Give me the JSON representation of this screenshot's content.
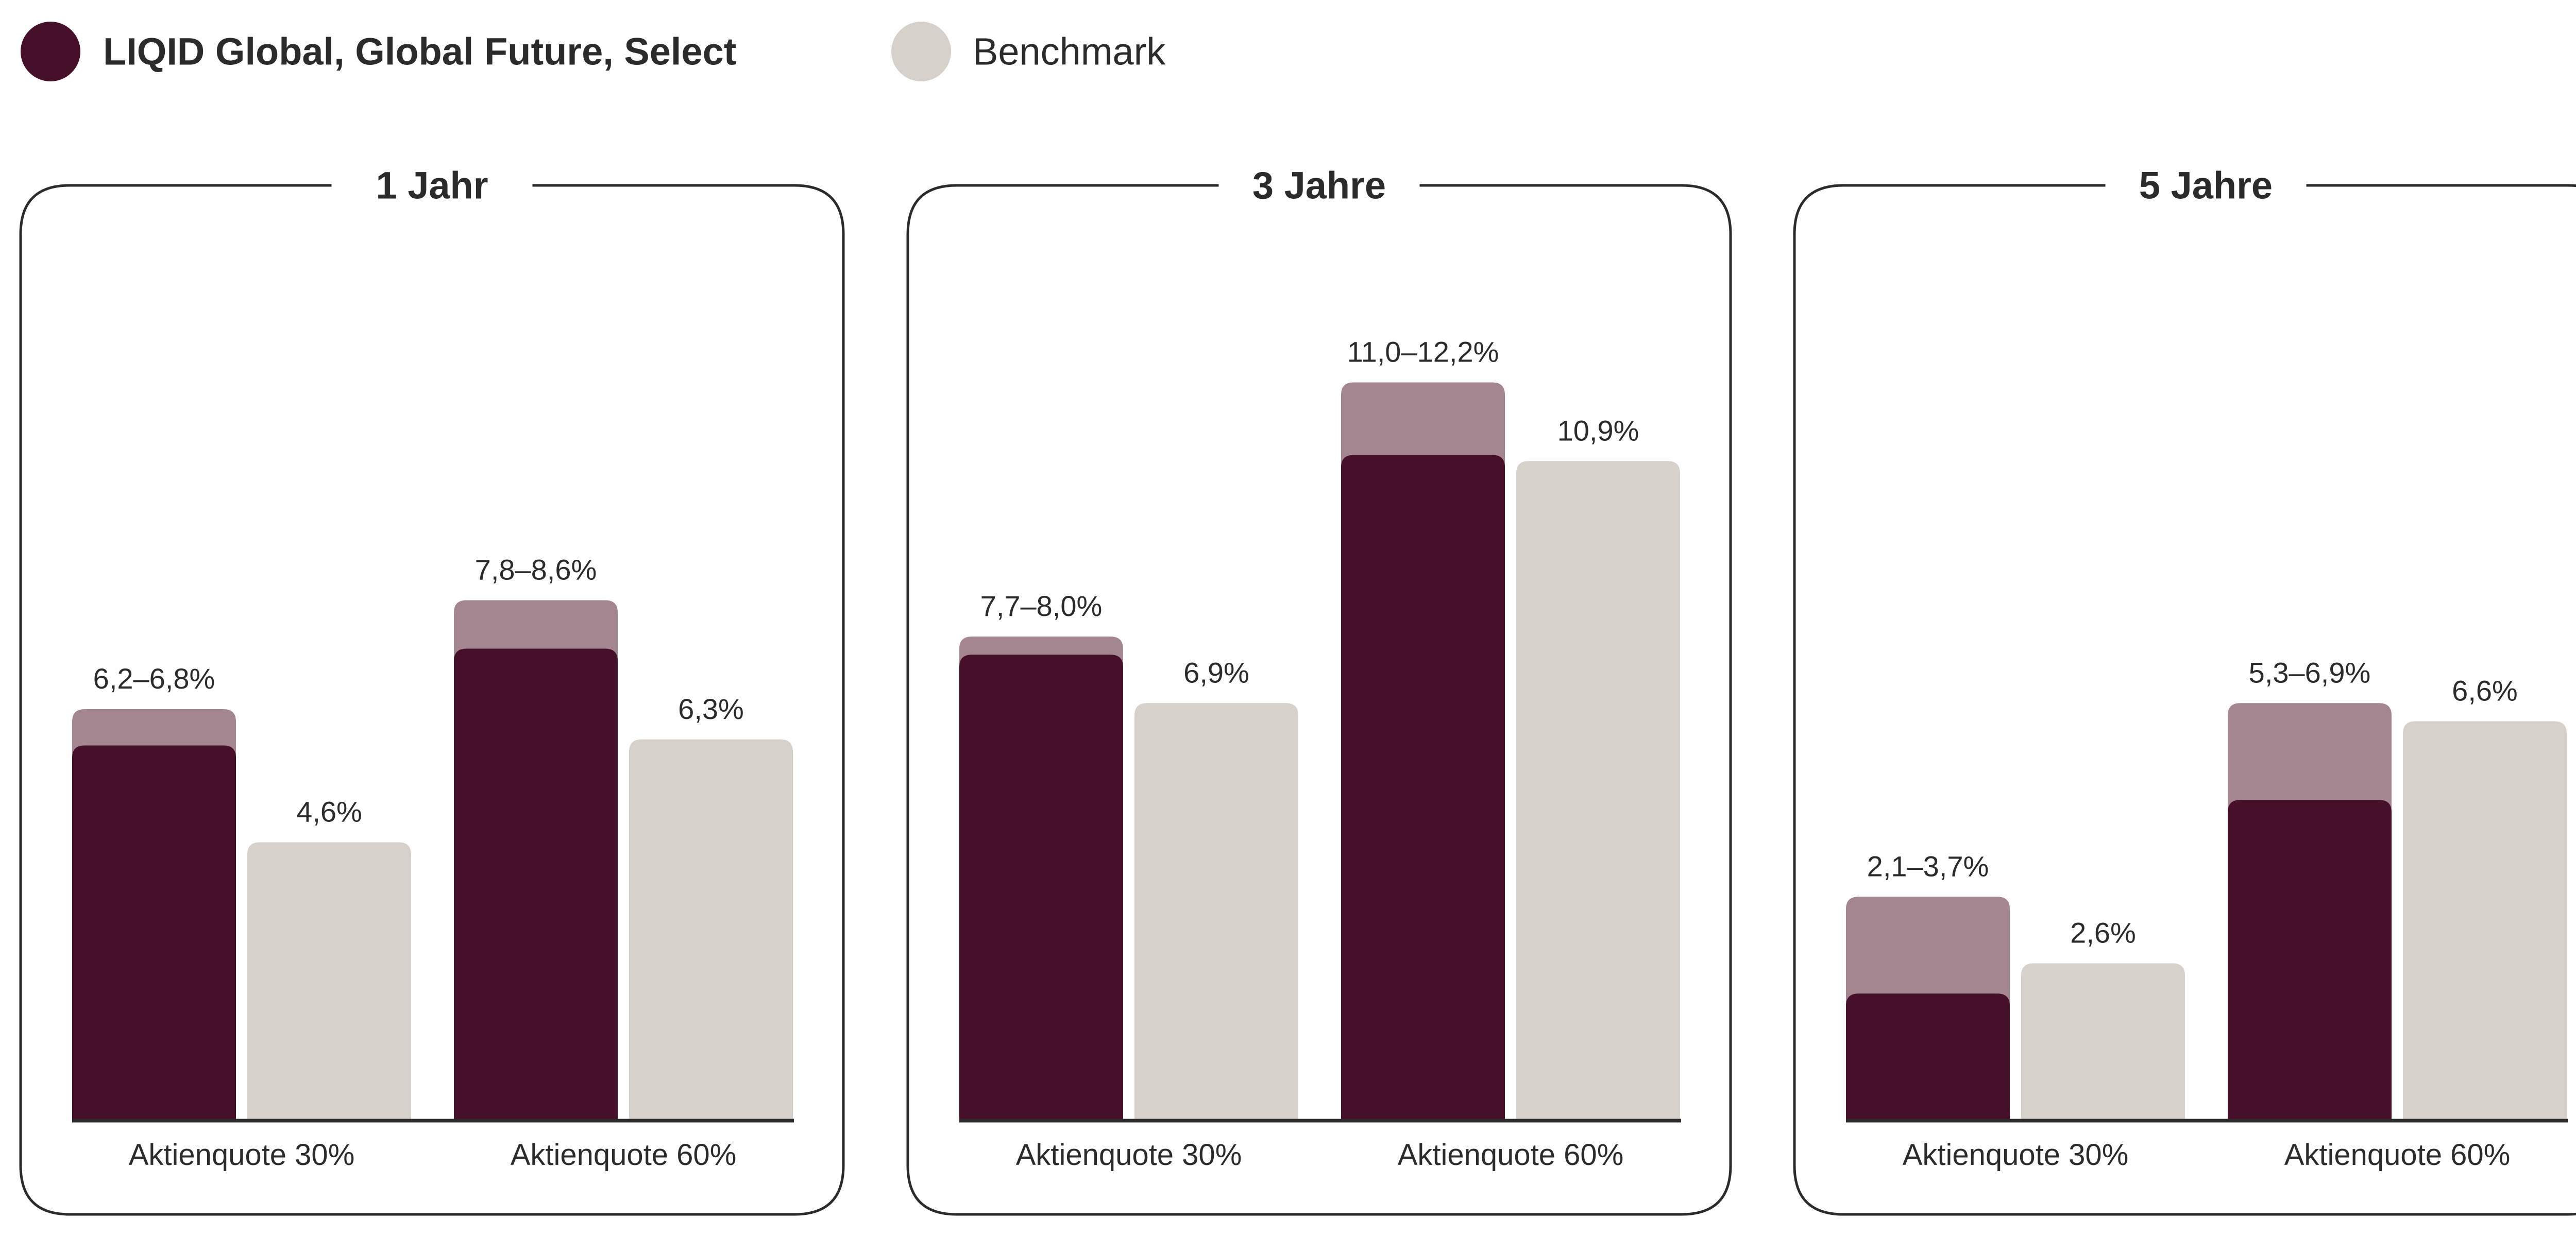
{
  "legend": {
    "items": [
      {
        "label": "LIQID Global, Global Future, Select",
        "color": "#46102a",
        "bold": true
      },
      {
        "label": "Benchmark",
        "color": "#d6d1cb",
        "bold": false
      }
    ]
  },
  "colors": {
    "liqid_base": "#46102a",
    "liqid_range": "#a3868f",
    "benchmark": "#d6d1cb",
    "axis": "#2b2b2b",
    "panel_border": "#2b2b2b",
    "text": "#2b2b2b"
  },
  "chart_data": [
    {
      "type": "bar",
      "title": "1 Jahr",
      "categories": [
        "Aktienquote 30%",
        "Aktienquote 60%"
      ],
      "series": [
        {
          "name": "LIQID Global, Global Future, Select",
          "low": [
            6.2,
            7.8
          ],
          "high": [
            6.8,
            8.6
          ],
          "labels": [
            "6,2–6,8%",
            "7,8–8,6%"
          ]
        },
        {
          "name": "Benchmark",
          "values": [
            4.6,
            6.3
          ],
          "labels": [
            "4,6%",
            "6,3%"
          ]
        }
      ],
      "ylim": [
        0,
        12.5
      ]
    },
    {
      "type": "bar",
      "title": "3 Jahre",
      "categories": [
        "Aktienquote 30%",
        "Aktienquote 60%"
      ],
      "series": [
        {
          "name": "LIQID Global, Global Future, Select",
          "low": [
            7.7,
            11.0
          ],
          "high": [
            8.0,
            12.2
          ],
          "labels": [
            "7,7–8,0%",
            "11,0–12,2%"
          ]
        },
        {
          "name": "Benchmark",
          "values": [
            6.9,
            10.9
          ],
          "labels": [
            "6,9%",
            "10,9%"
          ]
        }
      ],
      "ylim": [
        0,
        12.5
      ]
    },
    {
      "type": "bar",
      "title": "5 Jahre",
      "categories": [
        "Aktienquote 30%",
        "Aktienquote 60%"
      ],
      "series": [
        {
          "name": "LIQID Global, Global Future, Select",
          "low": [
            2.1,
            5.3
          ],
          "high": [
            3.7,
            6.9
          ],
          "labels": [
            "2,1–3,7%",
            "5,3–6,9%"
          ]
        },
        {
          "name": "Benchmark",
          "values": [
            2.6,
            6.6
          ],
          "labels": [
            "2,6%",
            "6,6%"
          ]
        }
      ],
      "ylim": [
        0,
        12.5
      ]
    }
  ]
}
